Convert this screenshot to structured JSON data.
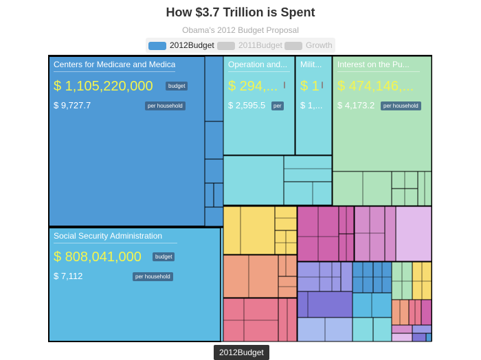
{
  "header": {
    "title": "How $3.7 Trillion is Spent",
    "subtitle": "Obama's 2012 Budget Proposal"
  },
  "legend": {
    "items": [
      {
        "label": "2012Budget",
        "color": "#4c9ad8",
        "active": true
      },
      {
        "label": "2011Budget",
        "color": "#cccccc",
        "active": false
      },
      {
        "label": "Growth",
        "color": "#cccccc",
        "active": false
      }
    ]
  },
  "tooltip": {
    "label": "2012Budget"
  },
  "labels": {
    "budget_tag": "budget",
    "household_tag": "per household"
  },
  "chart_data": {
    "type": "treemap",
    "title": "How $3.7 Trillion is Spent",
    "subtitle": "Obama's 2012 Budget Proposal",
    "measure": "2012Budget",
    "labeled_blocks": [
      {
        "name": "Centers for Medicare and Medica...",
        "budget": "$ 1,105,220,000",
        "per_household": "$ 9,727.7",
        "color": "#4f9ad6"
      },
      {
        "name": "Social Security Administration",
        "budget": "$ 808,041,000",
        "per_household": "$ 7,112",
        "color": "#5cbbe3"
      },
      {
        "name": "Operation and...",
        "budget": "$ 294,...",
        "per_household": "$ 2,595.5",
        "color": "#86dbe3"
      },
      {
        "name": "Milit...",
        "budget": "$ 1",
        "per_household": "$ 1,...",
        "color": "#86dbe3"
      },
      {
        "name": "Interest on the Pu...",
        "budget": "$ 474,146,...",
        "per_household": "$ 4,173.2",
        "color": "#b0e3bc"
      }
    ]
  }
}
